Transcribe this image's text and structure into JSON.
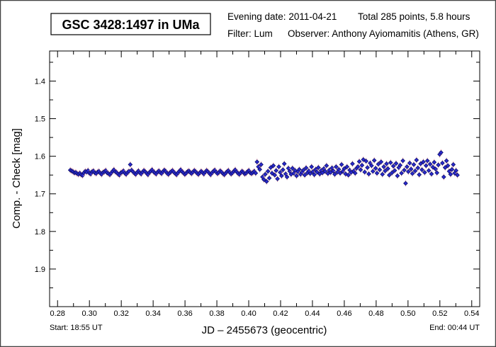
{
  "header": {
    "title": "GSC 3428:1497 in UMa",
    "evening_date": "Evening date: 2011-04-21",
    "total": "Total 285 points, 5.8 hours",
    "filter": "Filter: Lum",
    "observer": "Observer: Anthony Ayiomamitis (Athens, GR)"
  },
  "footer": {
    "start": "Start: 18:55 UT",
    "end": "End: 00:44 UT"
  },
  "colors": {
    "marker_fill": "#2a2ad0",
    "marker_stroke": "#10106a",
    "errorbar": "#f0a0b0"
  },
  "chart_data": {
    "type": "scatter",
    "title": "GSC 3428:1497 in UMa",
    "xlabel": "JD – 2455673  (geocentric)",
    "ylabel": "Comp. - Check [mag]",
    "xlim": [
      0.275,
      0.545
    ],
    "ylim": [
      1.32,
      2.0
    ],
    "y_inverted": true,
    "x_ticks": [
      "0.28",
      "0.30",
      "0.32",
      "0.34",
      "0.36",
      "0.38",
      "0.40",
      "0.42",
      "0.44",
      "0.46",
      "0.48",
      "0.50",
      "0.52",
      "0.54"
    ],
    "y_ticks": [
      "1.4",
      "1.5",
      "1.6",
      "1.7",
      "1.8",
      "1.9"
    ],
    "grid": false,
    "x_start": 0.288,
    "x_end": 0.531,
    "y": [
      1.637,
      1.639,
      1.641,
      1.644,
      1.643,
      1.646,
      1.648,
      1.645,
      1.649,
      1.651,
      1.644,
      1.64,
      1.642,
      1.638,
      1.645,
      1.647,
      1.641,
      1.639,
      1.644,
      1.646,
      1.642,
      1.64,
      1.645,
      1.648,
      1.643,
      1.641,
      1.638,
      1.644,
      1.646,
      1.649,
      1.645,
      1.64,
      1.636,
      1.641,
      1.643,
      1.647,
      1.65,
      1.644,
      1.642,
      1.639,
      1.645,
      1.648,
      1.643,
      1.64,
      1.622,
      1.637,
      1.641,
      1.645,
      1.648,
      1.643,
      1.639,
      1.644,
      1.647,
      1.642,
      1.638,
      1.641,
      1.645,
      1.649,
      1.643,
      1.64,
      1.636,
      1.641,
      1.644,
      1.647,
      1.642,
      1.639,
      1.643,
      1.646,
      1.641,
      1.637,
      1.64,
      1.645,
      1.648,
      1.644,
      1.641,
      1.638,
      1.642,
      1.646,
      1.649,
      1.644,
      1.64,
      1.636,
      1.641,
      1.644,
      1.648,
      1.645,
      1.641,
      1.639,
      1.643,
      1.646,
      1.642,
      1.638,
      1.641,
      1.645,
      1.648,
      1.644,
      1.64,
      1.643,
      1.647,
      1.642,
      1.638,
      1.641,
      1.645,
      1.649,
      1.644,
      1.64,
      1.637,
      1.642,
      1.646,
      1.643,
      1.639,
      1.642,
      1.646,
      1.649,
      1.645,
      1.641,
      1.638,
      1.643,
      1.647,
      1.644,
      1.64,
      1.636,
      1.641,
      1.645,
      1.648,
      1.644,
      1.64,
      1.643,
      1.647,
      1.645,
      1.641,
      1.638,
      1.644,
      1.646,
      1.643,
      1.64,
      1.645,
      1.615,
      1.628,
      1.635,
      1.622,
      1.655,
      1.662,
      1.648,
      1.667,
      1.64,
      1.658,
      1.63,
      1.645,
      1.625,
      1.65,
      1.638,
      1.66,
      1.628,
      1.643,
      1.652,
      1.636,
      1.62,
      1.647,
      1.655,
      1.632,
      1.64,
      1.648,
      1.632,
      1.645,
      1.638,
      1.652,
      1.641,
      1.635,
      1.648,
      1.643,
      1.637,
      1.65,
      1.631,
      1.644,
      1.639,
      1.646,
      1.628,
      1.641,
      1.649,
      1.635,
      1.642,
      1.63,
      1.647,
      1.638,
      1.644,
      1.633,
      1.64,
      1.625,
      1.646,
      1.637,
      1.643,
      1.631,
      1.639,
      1.648,
      1.628,
      1.642,
      1.635,
      1.645,
      1.622,
      1.64,
      1.633,
      1.647,
      1.628,
      1.65,
      1.637,
      1.643,
      1.62,
      1.639,
      1.645,
      1.632,
      1.628,
      1.614,
      1.636,
      1.624,
      1.609,
      1.642,
      1.613,
      1.63,
      1.647,
      1.618,
      1.625,
      1.64,
      1.611,
      1.632,
      1.645,
      1.621,
      1.636,
      1.615,
      1.648,
      1.628,
      1.639,
      1.62,
      1.633,
      1.65,
      1.617,
      1.644,
      1.626,
      1.638,
      1.619,
      1.652,
      1.63,
      1.624,
      1.645,
      1.612,
      1.637,
      1.672,
      1.628,
      1.641,
      1.618,
      1.634,
      1.646,
      1.622,
      1.639,
      1.61,
      1.631,
      1.649,
      1.62,
      1.636,
      1.615,
      1.643,
      1.625,
      1.612,
      1.638,
      1.621,
      1.647,
      1.629,
      1.616,
      1.634,
      1.644,
      1.623,
      1.595,
      1.59,
      1.618,
      1.655,
      1.63,
      1.612,
      1.625,
      1.64,
      1.648,
      1.635,
      1.622,
      1.645,
      1.638,
      1.65
    ]
  }
}
